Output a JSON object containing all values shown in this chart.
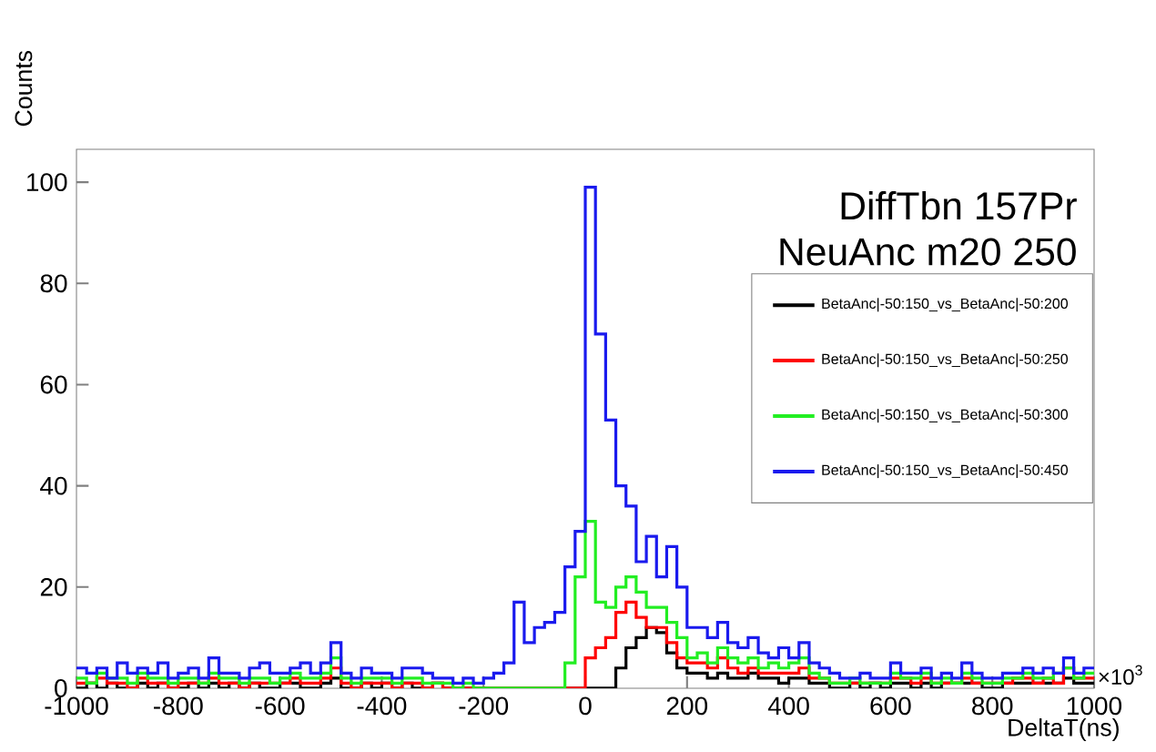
{
  "chart_data": {
    "type": "histogram",
    "title": "DiffTbn  157Pr",
    "subtitle": "NeuAnc  m20  250",
    "xlabel": "DeltaT(ns)",
    "ylabel": "Counts",
    "annotations": [
      "×10$^{3}$"
    ],
    "bins": [
      -1000,
      -980,
      -960,
      -940,
      -920,
      -900,
      -880,
      -860,
      -840,
      -820,
      -800,
      -780,
      -760,
      -740,
      -720,
      -700,
      -680,
      -660,
      -640,
      -620,
      -600,
      -580,
      -560,
      -540,
      -520,
      -500,
      -480,
      -460,
      -440,
      -420,
      -400,
      -380,
      -360,
      -340,
      -320,
      -300,
      -280,
      -260,
      -240,
      -220,
      -200,
      -180,
      -160,
      -140,
      -120,
      -100,
      -80,
      -60,
      -40,
      -20,
      0,
      20,
      40,
      60,
      80,
      100,
      120,
      140,
      160,
      180,
      200,
      220,
      240,
      260,
      280,
      300,
      320,
      340,
      360,
      380,
      400,
      420,
      440,
      460,
      480,
      500,
      520,
      540,
      560,
      580,
      600,
      620,
      640,
      660,
      680,
      700,
      720,
      740,
      760,
      780,
      800,
      820,
      840,
      860,
      880,
      900,
      920,
      940,
      960,
      980,
      1000
    ],
    "series": [
      {
        "name": "BetaAnc|-50:150_vs_BetaAnc|-50:200",
        "color": "#000000",
        "values": [
          0,
          1,
          0,
          1,
          0,
          0,
          1,
          0,
          1,
          0,
          0,
          1,
          0,
          1,
          0,
          1,
          0,
          1,
          0,
          0,
          1,
          1,
          0,
          0,
          1,
          2,
          0,
          0,
          1,
          0,
          1,
          0,
          1,
          0,
          0,
          1,
          0,
          0,
          0,
          0,
          0,
          0,
          0,
          0,
          0,
          0,
          0,
          0,
          0,
          0,
          0,
          0,
          0,
          4,
          8,
          10,
          12,
          11,
          7,
          4,
          3,
          3,
          2,
          3,
          2,
          2,
          3,
          2,
          2,
          1,
          2,
          2,
          1,
          1,
          0,
          0,
          1,
          0,
          1,
          0,
          1,
          1,
          0,
          1,
          0,
          1,
          1,
          1,
          1,
          0,
          0,
          1,
          1,
          1,
          1,
          1,
          1,
          2,
          1,
          1
        ]
      },
      {
        "name": "BetaAnc|-50:150_vs_BetaAnc|-50:250",
        "color": "#ff0000",
        "values": [
          1,
          1,
          2,
          1,
          1,
          0,
          2,
          1,
          1,
          0,
          1,
          1,
          1,
          2,
          1,
          1,
          0,
          1,
          1,
          1,
          1,
          2,
          1,
          1,
          2,
          4,
          1,
          0,
          1,
          1,
          1,
          0,
          1,
          1,
          0,
          1,
          0,
          0,
          0,
          0,
          0,
          0,
          0,
          0,
          0,
          0,
          0,
          0,
          0,
          0,
          6,
          8,
          10,
          15,
          17,
          14,
          12,
          12,
          9,
          6,
          5,
          5,
          4,
          6,
          4,
          3,
          4,
          3,
          3,
          3,
          3,
          4,
          2,
          2,
          1,
          1,
          1,
          1,
          1,
          1,
          2,
          2,
          1,
          2,
          1,
          1,
          1,
          2,
          1,
          1,
          1,
          1,
          2,
          2,
          1,
          2,
          1,
          4,
          2,
          2
        ]
      },
      {
        "name": "BetaAnc|-50:150_vs_BetaAnc|-50:300",
        "color": "#22ee22",
        "values": [
          2,
          1,
          3,
          2,
          2,
          1,
          3,
          2,
          2,
          1,
          2,
          2,
          1,
          3,
          2,
          2,
          1,
          2,
          2,
          1,
          2,
          3,
          2,
          2,
          3,
          6,
          2,
          1,
          2,
          2,
          2,
          1,
          2,
          2,
          1,
          1,
          1,
          0,
          1,
          0,
          0,
          0,
          0,
          0,
          0,
          0,
          0,
          0,
          5,
          22,
          33,
          17,
          16,
          20,
          22,
          19,
          16,
          16,
          13,
          10,
          6,
          7,
          5,
          8,
          6,
          5,
          6,
          4,
          5,
          4,
          5,
          6,
          3,
          2,
          1,
          1,
          2,
          1,
          1,
          1,
          3,
          2,
          2,
          3,
          1,
          2,
          1,
          3,
          2,
          1,
          1,
          2,
          2,
          3,
          2,
          2,
          3,
          4,
          2,
          3
        ]
      },
      {
        "name": "BetaAnc|-50:150_vs_BetaAnc|-50:450",
        "color": "#1a1aee",
        "values": [
          4,
          3,
          4,
          2,
          5,
          3,
          4,
          3,
          5,
          2,
          3,
          4,
          2,
          6,
          3,
          3,
          2,
          4,
          5,
          3,
          3,
          4,
          5,
          3,
          5,
          9,
          3,
          2,
          4,
          3,
          3,
          2,
          4,
          4,
          3,
          2,
          2,
          1,
          2,
          1,
          2,
          3,
          5,
          17,
          9,
          12,
          13,
          15,
          24,
          31,
          99,
          70,
          53,
          40,
          36,
          25,
          30,
          22,
          28,
          20,
          12,
          12,
          10,
          13,
          9,
          8,
          10,
          7,
          6,
          8,
          6,
          9,
          5,
          4,
          3,
          2,
          2,
          3,
          2,
          2,
          5,
          3,
          3,
          4,
          2,
          3,
          2,
          5,
          3,
          2,
          2,
          3,
          3,
          4,
          3,
          4,
          3,
          6,
          3,
          4
        ]
      }
    ],
    "xlim": [
      -1000,
      1000
    ],
    "ylim": [
      0,
      106.5
    ],
    "xticks": [
      -1000,
      -800,
      -600,
      -400,
      -200,
      0,
      200,
      400,
      600,
      800,
      1000
    ],
    "yticks": [
      0,
      20,
      40,
      60,
      80,
      100
    ],
    "legend": "right"
  }
}
